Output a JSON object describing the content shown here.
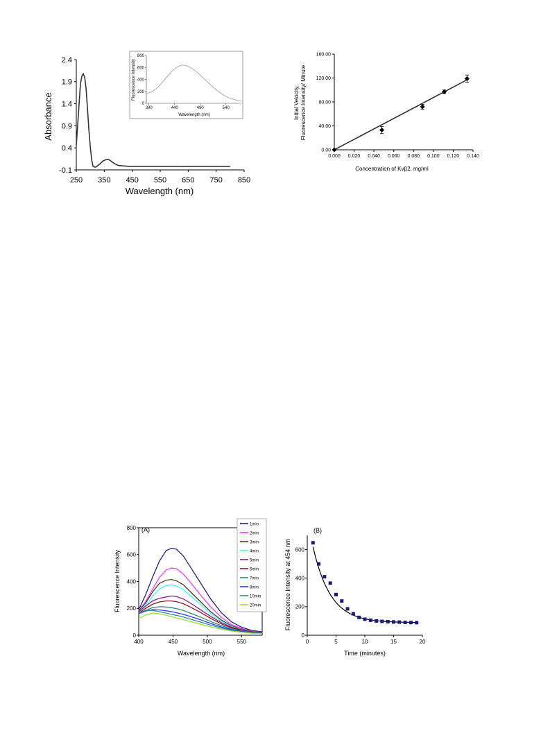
{
  "chart_data": [
    {
      "id": "absorbance",
      "type": "line",
      "title": "",
      "xlabel": "Wavelength (nm)",
      "ylabel": "Absorbance",
      "xlim": [
        250,
        850
      ],
      "ylim": [
        -0.1,
        2.4
      ],
      "x_ticks": [
        250,
        350,
        450,
        550,
        650,
        750,
        850
      ],
      "x_tick_labels": [
        "250",
        "350",
        "450",
        "550",
        "650",
        "750",
        "850"
      ],
      "y_ticks": [
        -0.1,
        0.4,
        0.9,
        1.4,
        1.9,
        2.4
      ],
      "y_tick_labels": [
        "-0.1",
        "0.4",
        "0.9",
        "1.4",
        "1.9",
        "2.4"
      ],
      "grid": false,
      "series": [
        {
          "color": "#333333",
          "x": [
            250,
            258,
            265,
            270,
            275,
            280,
            285,
            290,
            295,
            300,
            305,
            310,
            318,
            325,
            335,
            345,
            355,
            362,
            370,
            380,
            390,
            400,
            420,
            440,
            460,
            500,
            600,
            700,
            800
          ],
          "y": [
            0.45,
            1.2,
            1.85,
            2.03,
            2.08,
            2.0,
            1.75,
            1.3,
            0.8,
            0.42,
            0.12,
            -0.02,
            -0.04,
            -0.01,
            0.04,
            0.1,
            0.13,
            0.14,
            0.12,
            0.07,
            0.03,
            0.0,
            -0.01,
            -0.02,
            -0.02,
            -0.02,
            -0.02,
            -0.02,
            -0.02
          ]
        }
      ],
      "inset": {
        "xlabel": "Wavelength (nm)",
        "ylabel": "Fluorescence Intensity",
        "xlim": [
          385,
          570
        ],
        "ylim": [
          0,
          800
        ],
        "x_ticks": [
          390,
          440,
          490,
          540
        ],
        "x_tick_labels": [
          "390",
          "440",
          "490",
          "540"
        ],
        "y_ticks": [
          0,
          200,
          400,
          600,
          800
        ],
        "y_tick_labels": [
          "0",
          "200",
          "400",
          "600",
          "800"
        ],
        "series": [
          {
            "color": "#aaaaaa",
            "x": [
              385,
              395,
              405,
              415,
              425,
              435,
              445,
              455,
              465,
              475,
              485,
              495,
              505,
              515,
              525,
              535,
              545,
              555,
              565,
              570
            ],
            "y": [
              160,
              190,
              250,
              340,
              440,
              540,
              610,
              640,
              625,
              580,
              510,
              430,
              350,
              270,
              200,
              140,
              95,
              65,
              45,
              40
            ]
          }
        ]
      }
    },
    {
      "id": "velocity",
      "type": "scatter",
      "title": "",
      "xlabel": "Concentration of Kvβ2, mg/ml",
      "ylabel_lines": [
        "Initial Velocity,",
        "Fluorescence Intensity/ Minute"
      ],
      "xlim": [
        0,
        0.14
      ],
      "ylim": [
        0,
        160
      ],
      "x_ticks": [
        0,
        0.02,
        0.04,
        0.06,
        0.08,
        0.1,
        0.12,
        0.14
      ],
      "x_tick_labels": [
        "0.000",
        "0.020",
        "0.040",
        "0.060",
        "0.080",
        "0.100",
        "0.120",
        "0.140"
      ],
      "y_ticks": [
        0,
        40,
        80,
        120,
        160
      ],
      "y_tick_labels": [
        "0.00",
        "40.00",
        "80.00",
        "120.00",
        "160.00"
      ],
      "grid": false,
      "points": {
        "x": [
          0.0,
          0.048,
          0.089,
          0.111,
          0.134
        ],
        "y": [
          0,
          33,
          72,
          97,
          119
        ],
        "err": [
          0,
          6,
          4,
          3,
          6
        ]
      },
      "fit_line": {
        "x": [
          0.0,
          0.134
        ],
        "y": [
          0,
          117
        ]
      }
    },
    {
      "id": "panel-a",
      "type": "line",
      "title": "",
      "panel_label": "(A)",
      "xlabel": "Wavelength (nm)",
      "ylabel": "Fluorescence Intensity",
      "xlim": [
        400,
        580
      ],
      "ylim": [
        0,
        800
      ],
      "x_ticks": [
        400,
        450,
        500,
        550
      ],
      "x_tick_labels": [
        "400",
        "450",
        "500",
        "550"
      ],
      "y_ticks": [
        0,
        200,
        400,
        600,
        800
      ],
      "y_tick_labels": [
        "0",
        "200",
        "400",
        "600",
        "800"
      ],
      "legend_position": "top-right",
      "x": [
        400,
        410,
        420,
        430,
        440,
        448,
        455,
        465,
        475,
        490,
        505,
        520,
        535,
        550,
        565,
        580
      ],
      "series": [
        {
          "name": "1min",
          "color": "#1f1f8f",
          "y": [
            190,
            300,
            430,
            550,
            630,
            648,
            640,
            590,
            510,
            390,
            270,
            170,
            100,
            60,
            35,
            25
          ]
        },
        {
          "name": "2min",
          "color": "#ff33ff",
          "y": [
            180,
            250,
            340,
            430,
            485,
            500,
            495,
            455,
            395,
            300,
            210,
            135,
            80,
            50,
            30,
            20
          ]
        },
        {
          "name": "3min",
          "color": "#4a3a1a",
          "y": [
            180,
            240,
            320,
            385,
            410,
            415,
            405,
            375,
            325,
            250,
            175,
            115,
            70,
            45,
            28,
            20
          ]
        },
        {
          "name": "4min",
          "color": "#33ffff",
          "y": [
            175,
            225,
            290,
            345,
            370,
            375,
            365,
            340,
            295,
            228,
            160,
            105,
            65,
            42,
            26,
            18
          ]
        },
        {
          "name": "5min",
          "color": "#8a1a8a",
          "y": [
            175,
            215,
            255,
            275,
            285,
            292,
            288,
            270,
            240,
            190,
            140,
            95,
            60,
            40,
            25,
            18
          ]
        },
        {
          "name": "6min",
          "color": "#8b1a1a",
          "y": [
            165,
            200,
            230,
            248,
            255,
            255,
            250,
            235,
            210,
            170,
            125,
            85,
            55,
            36,
            22,
            16
          ]
        },
        {
          "name": "7min",
          "color": "#2a8a6a",
          "y": [
            160,
            185,
            205,
            212,
            210,
            205,
            198,
            185,
            165,
            135,
            102,
            72,
            48,
            32,
            20,
            15
          ]
        },
        {
          "name": "8min",
          "color": "#3333ff",
          "y": [
            160,
            180,
            190,
            188,
            182,
            175,
            168,
            155,
            140,
            115,
            88,
            62,
            42,
            28,
            18,
            14
          ]
        },
        {
          "name": "10min",
          "color": "#2a8aa0",
          "y": [
            165,
            185,
            185,
            175,
            165,
            155,
            148,
            135,
            120,
            98,
            75,
            54,
            37,
            25,
            17,
            13
          ]
        },
        {
          "name": "20min",
          "color": "#99dd33",
          "y": [
            125,
            150,
            165,
            160,
            148,
            138,
            128,
            116,
            102,
            82,
            62,
            45,
            31,
            22,
            15,
            12
          ]
        }
      ]
    },
    {
      "id": "panel-b",
      "type": "scatter",
      "title": "",
      "panel_label": "(B)",
      "xlabel": "Time (minutes)",
      "ylabel": "Fluorescence Intensity at 454 nm",
      "xlim": [
        0,
        20
      ],
      "ylim": [
        0,
        700
      ],
      "x_ticks": [
        0,
        5,
        10,
        15,
        20
      ],
      "x_tick_labels": [
        "0",
        "5",
        "10",
        "15",
        "20"
      ],
      "y_ticks": [
        0,
        200,
        400,
        600
      ],
      "y_tick_labels": [
        "0",
        "200",
        "400",
        "600"
      ],
      "points": {
        "color": "#1a1a7a",
        "x": [
          1,
          2,
          3,
          4,
          5,
          6,
          7,
          8,
          9,
          10,
          11,
          12,
          13,
          14,
          15,
          16,
          17,
          18,
          19
        ],
        "y": [
          648,
          500,
          410,
          365,
          285,
          240,
          185,
          150,
          125,
          112,
          105,
          100,
          97,
          95,
          93,
          92,
          90,
          89,
          88
        ]
      },
      "fit": {
        "plateau": 88,
        "amplitude": 740,
        "rate": 0.33
      }
    }
  ]
}
